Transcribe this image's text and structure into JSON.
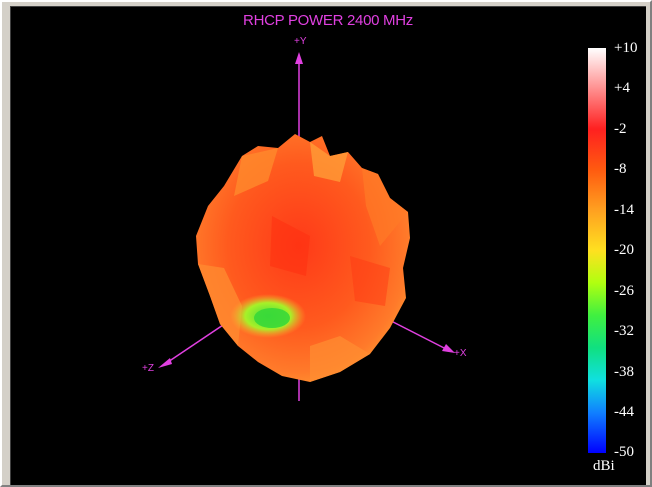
{
  "plot": {
    "title": "RHCP POWER 2400  MHz",
    "axes": {
      "y": "+Y",
      "z": "+Z",
      "x": "+X"
    },
    "colors": {
      "axis": "#e040e0",
      "background": "#000000"
    }
  },
  "scale": {
    "ticks": [
      "+10",
      "+4",
      "-2",
      "-8",
      "-14",
      "-20",
      "-26",
      "-32",
      "-38",
      "-44",
      "-50"
    ],
    "unit": "dBi"
  }
}
